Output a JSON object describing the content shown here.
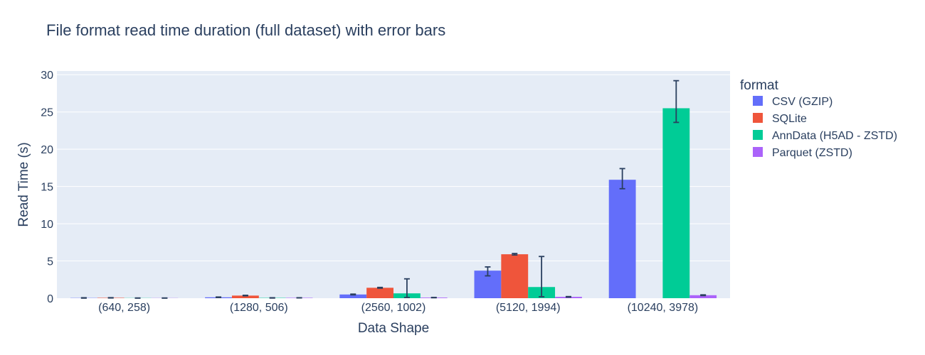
{
  "chart_data": {
    "type": "bar",
    "title": "File format read time duration (full dataset) with error bars",
    "xlabel": "Data Shape",
    "ylabel": "Read Time (s)",
    "categories": [
      "(640, 258)",
      "(1280, 506)",
      "(2560, 1002)",
      "(5120, 1994)",
      "(10240, 3978)"
    ],
    "ylim": [
      0,
      30.5
    ],
    "yticks": [
      0,
      5,
      10,
      15,
      20,
      25,
      30
    ],
    "grid": true,
    "legend_title": "format",
    "legend_position": "right",
    "plot_bgcolor": "#E5ECF6",
    "series": [
      {
        "name": "CSV (GZIP)",
        "color": "#636EFA",
        "values": [
          0.03,
          0.12,
          0.5,
          3.7,
          15.9
        ],
        "err_low": [
          0.02,
          0.03,
          0.05,
          0.7,
          1.2
        ],
        "err_high": [
          0.03,
          0.04,
          0.05,
          0.5,
          1.5
        ]
      },
      {
        "name": "SQLite",
        "color": "#EF553B",
        "values": [
          0.05,
          0.35,
          1.4,
          5.9,
          0
        ],
        "err_low": [
          0.02,
          0.03,
          0.05,
          0.1,
          0
        ],
        "err_high": [
          0.02,
          0.04,
          0.05,
          0.1,
          0
        ]
      },
      {
        "name": "AnnData (H5AD - ZSTD)",
        "color": "#00CC96",
        "values": [
          0.02,
          0.04,
          0.65,
          1.5,
          25.5
        ],
        "err_low": [
          0.01,
          0.02,
          0.55,
          1.3,
          1.9
        ],
        "err_high": [
          0.01,
          0.02,
          1.95,
          4.1,
          3.7
        ]
      },
      {
        "name": "Parquet (ZSTD)",
        "color": "#AB63FA",
        "values": [
          0.02,
          0.05,
          0.08,
          0.18,
          0.4
        ],
        "err_low": [
          0.01,
          0.01,
          0.02,
          0.04,
          0.05
        ],
        "err_high": [
          0.01,
          0.01,
          0.02,
          0.04,
          0.05
        ]
      }
    ],
    "errorbar_color": "#2A3F5F"
  }
}
